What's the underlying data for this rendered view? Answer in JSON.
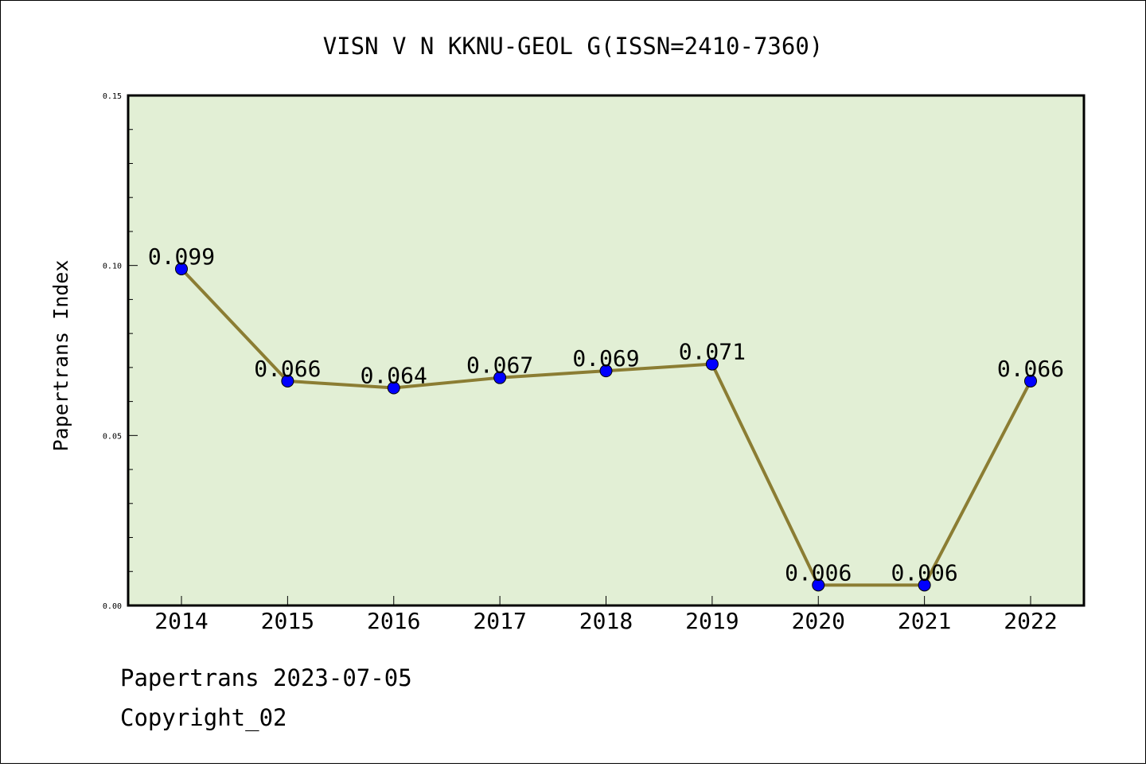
{
  "chart_data": {
    "type": "line",
    "title": "VISN V N KKNU-GEOL G(ISSN=2410-7360)",
    "ylabel": "Papertrans Index",
    "xlabel": "",
    "categories": [
      "2014",
      "2015",
      "2016",
      "2017",
      "2018",
      "2019",
      "2020",
      "2021",
      "2022"
    ],
    "series": [
      {
        "values": [
          0.099,
          0.066,
          0.064,
          0.067,
          0.069,
          0.071,
          0.006,
          0.006,
          0.066
        ],
        "labels": [
          "0.099",
          "0.066",
          "0.064",
          "0.067",
          "0.069",
          "0.071",
          "0.006",
          "0.006",
          "0.066"
        ]
      }
    ],
    "ylim": [
      0.0,
      0.15
    ],
    "yticks": [
      "0.00",
      "0.05",
      "0.10",
      "0.15"
    ],
    "grid": false,
    "colors": {
      "line": "#8b7d33",
      "marker": "#0000ff",
      "plot_background": "#e2efd5"
    }
  },
  "footer": {
    "line1": "Papertrans 2023-07-05",
    "line2": "Copyright_02"
  }
}
